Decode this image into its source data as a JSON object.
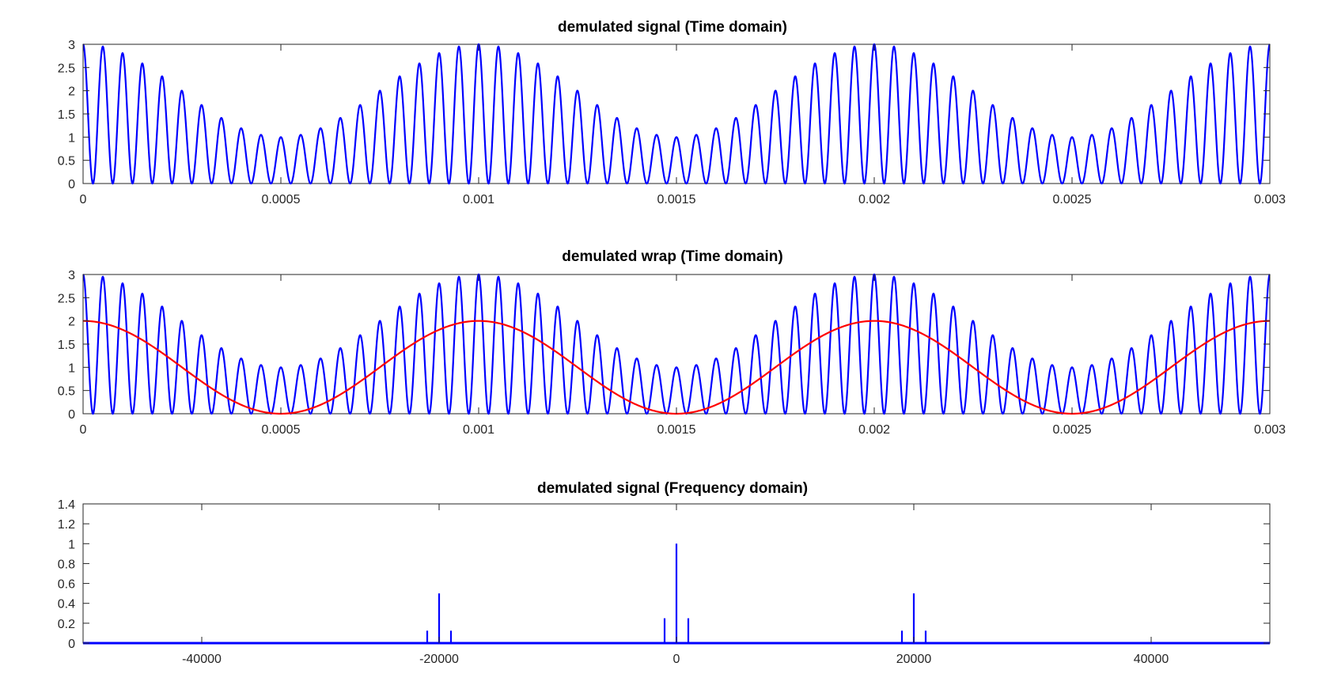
{
  "chart_data": [
    {
      "type": "line",
      "title": "demulated signal (Time domain)",
      "xlabel": "",
      "ylabel": "",
      "xlim": [
        0,
        0.003
      ],
      "ylim": [
        0,
        3
      ],
      "grid": false,
      "x_ticks": [
        "0",
        "0.0005",
        "0.001",
        "0.0015",
        "0.002",
        "0.0025",
        "0.003"
      ],
      "y_ticks": [
        "0",
        "0.5",
        "1",
        "1.5",
        "2",
        "2.5",
        "3"
      ],
      "series": [
        {
          "formula": "(1 + cos(2*pi*1000*t)) * (1 + cos(2*pi*20000*t)) / 2 + 0.5*(1+cos(2*pi*20000*t))/2*... ; envelope 1..3 over carrier",
          "color": "#0000ff",
          "carrier_hz": 20000,
          "modulation_hz": 1000,
          "peak_max": 3,
          "peak_min": 1,
          "min": 0
        }
      ]
    },
    {
      "type": "line",
      "title": "demulated wrap (Time domain)",
      "xlabel": "",
      "ylabel": "",
      "xlim": [
        0,
        0.003
      ],
      "ylim": [
        0,
        3
      ],
      "grid": false,
      "x_ticks": [
        "0",
        "0.0005",
        "0.001",
        "0.0015",
        "0.002",
        "0.0025",
        "0.003"
      ],
      "y_ticks": [
        "0",
        "0.5",
        "1",
        "1.5",
        "2",
        "2.5",
        "3"
      ],
      "series": [
        {
          "color": "#0000ff",
          "carrier_hz": 20000,
          "modulation_hz": 1000,
          "peak_max": 3,
          "peak_min": 1,
          "min": 0
        },
        {
          "color": "#ff0000",
          "formula": "1 + cos(2*pi*1000*t)",
          "frequency_hz": 1000,
          "max": 2,
          "min": 0
        }
      ]
    },
    {
      "type": "bar",
      "title": "demulated signal (Frequency domain)",
      "xlabel": "",
      "ylabel": "",
      "xlim": [
        -50000,
        50000
      ],
      "ylim": [
        0,
        1.4
      ],
      "grid": false,
      "x_ticks": [
        {
          "value": -40000,
          "label": "-40000"
        },
        {
          "value": -20000,
          "label": "-20000"
        },
        {
          "value": 0,
          "label": "0"
        },
        {
          "value": 20000,
          "label": "20000"
        },
        {
          "value": 40000,
          "label": "40000"
        }
      ],
      "y_ticks": [
        "0",
        "0.2",
        "0.4",
        "0.6",
        "0.8",
        "1",
        "1.2",
        "1.4"
      ],
      "color": "#0000ff",
      "x": [
        -21000,
        -20000,
        -19000,
        -1000,
        0,
        1000,
        19000,
        20000,
        21000
      ],
      "values": [
        0.125,
        0.5,
        0.125,
        0.25,
        1.0,
        0.25,
        0.125,
        0.5,
        0.125
      ]
    }
  ]
}
